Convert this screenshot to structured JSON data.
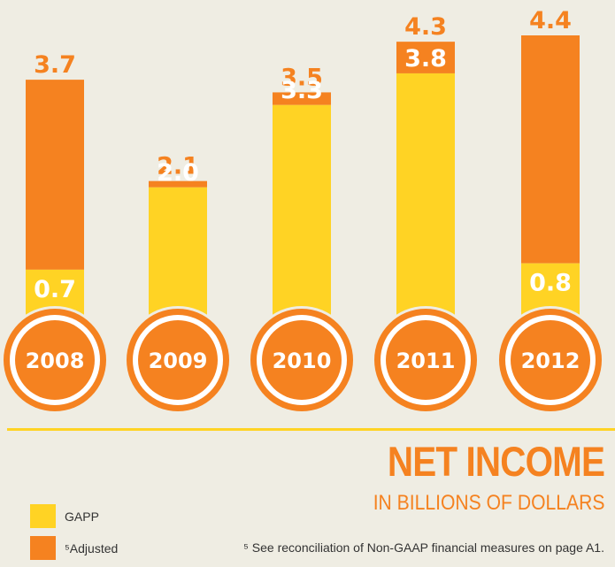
{
  "colors": {
    "gaap": "#ffd324",
    "adjusted": "#f58220",
    "background": "#efede3",
    "label_adjusted": "#f58220",
    "label_gaap": "#ffffff"
  },
  "title": "NET INCOME",
  "subtitle": "IN BILLIONS OF DOLLARS",
  "footnote": "⁵ See reconciliation of Non-GAAP financial measures on page A1.",
  "legend": [
    {
      "label": "GAPP",
      "color": "#ffd324"
    },
    {
      "label": "⁵Adjusted",
      "color": "#f58220"
    }
  ],
  "chart_data": {
    "type": "bar",
    "categories": [
      "2008",
      "2009",
      "2010",
      "2011",
      "2012"
    ],
    "series": [
      {
        "name": "GAPP",
        "values": [
          0.7,
          2.0,
          3.3,
          3.8,
          0.8
        ],
        "labels": [
          "0.7",
          "2.0",
          "3.3",
          "3.8",
          "0.8"
        ]
      },
      {
        "name": "⁵Adjusted",
        "values": [
          3.7,
          2.1,
          3.5,
          4.3,
          4.4
        ],
        "labels": [
          "3.7",
          "2.1",
          "3.5",
          "4.3",
          "4.4"
        ]
      }
    ],
    "ylim": [
      0,
      4.4
    ],
    "grid": false,
    "legend_position": "bottom-left"
  }
}
